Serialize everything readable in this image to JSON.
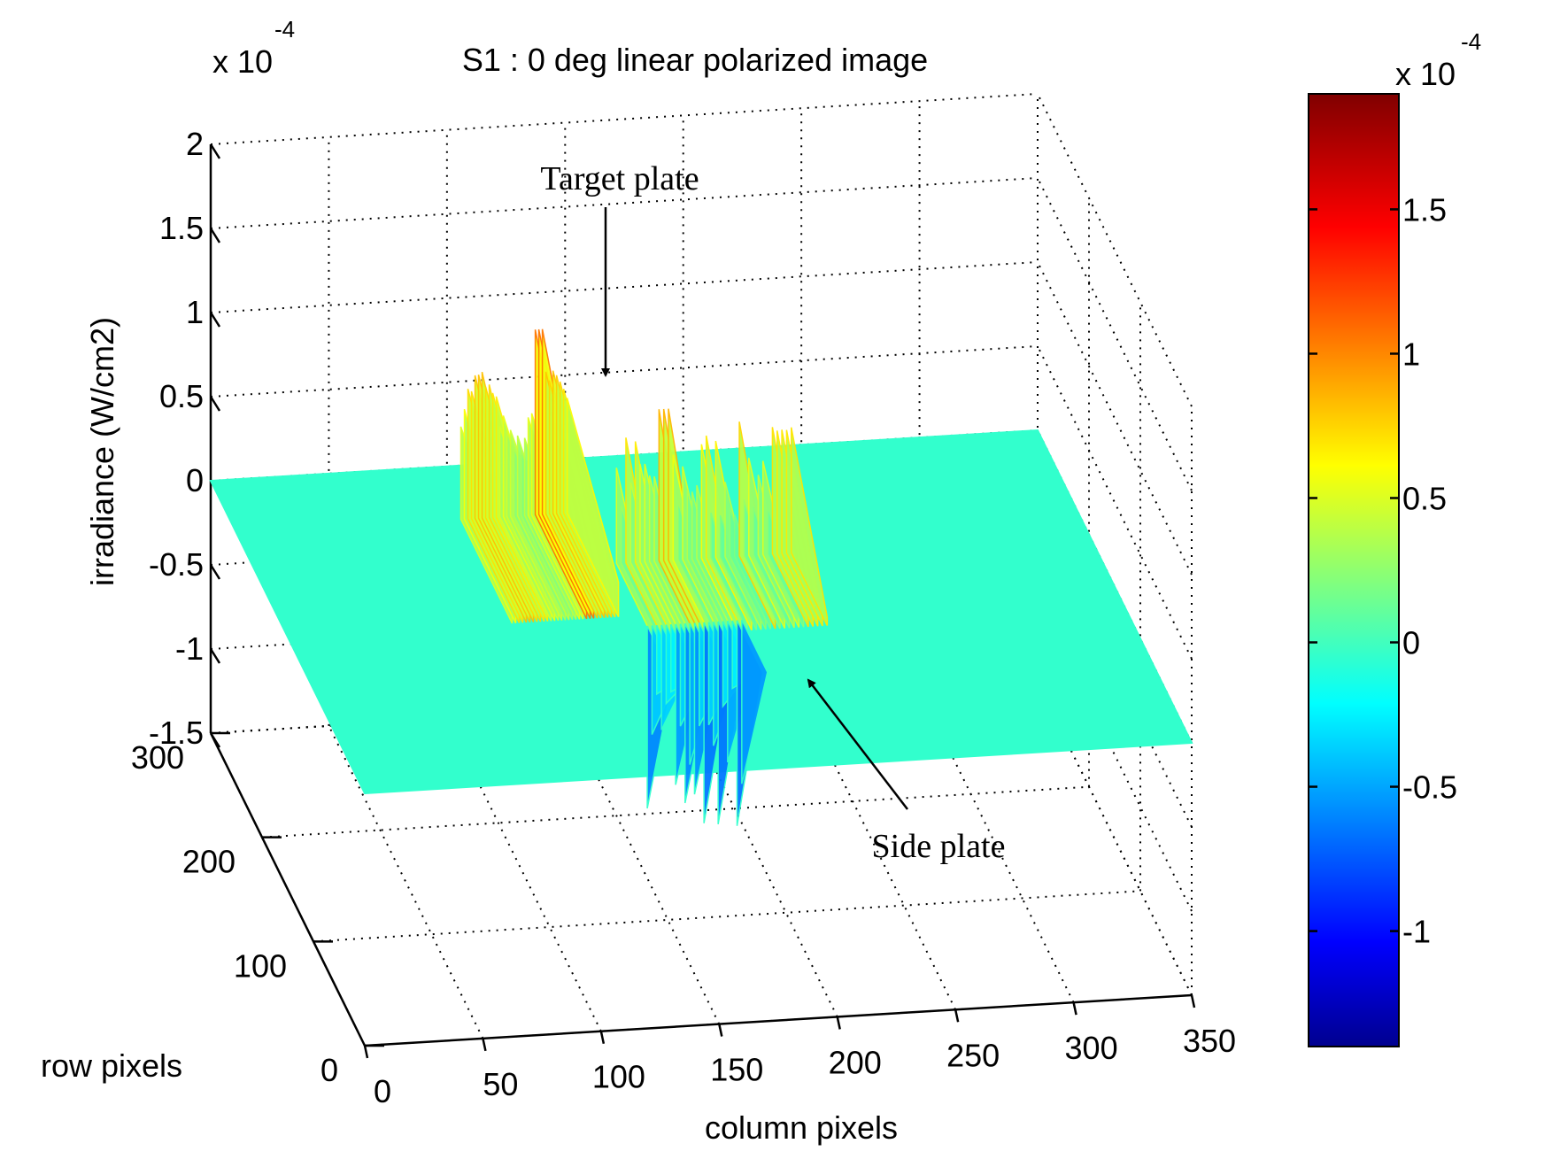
{
  "chart_data": {
    "type": "surface",
    "title": "S1 : 0 deg linear polarized image",
    "xlabel": "column pixels",
    "ylabel": "row pixels",
    "zlabel": "irradiance (W/cm2)",
    "z_exponent": {
      "base": "x 10",
      "power": "-4"
    },
    "x_ticks": [
      "0",
      "50",
      "100",
      "150",
      "200",
      "250",
      "300",
      "350"
    ],
    "y_ticks": [
      "0",
      "100",
      "200",
      "300"
    ],
    "z_ticks": [
      "-1.5",
      "-1",
      "-0.5",
      "0",
      "0.5",
      "1",
      "1.5",
      "2"
    ],
    "xlim": [
      0,
      350
    ],
    "ylim": [
      0,
      300
    ],
    "zlim": [
      -1.5,
      2
    ],
    "grid": true,
    "colormap": "jet",
    "colorbar": {
      "exponent": {
        "base": "x 10",
        "power": "-4"
      },
      "ticks": [
        "1.5",
        "1",
        "0.5",
        "0",
        "-0.5",
        "-1"
      ],
      "range": [
        -1.4,
        1.9
      ]
    },
    "baseline_level": 0,
    "features": [
      {
        "name": "target",
        "x_range": [
          95,
          140
        ],
        "peak_value": 1.1,
        "min_value": 0.1
      },
      {
        "name": "side",
        "x_range": [
          150,
          225
        ],
        "peak_value": 0.9,
        "min_value": -1.3
      }
    ],
    "annotations": [
      {
        "text": "Target plate"
      },
      {
        "text": "Side plate"
      }
    ]
  }
}
